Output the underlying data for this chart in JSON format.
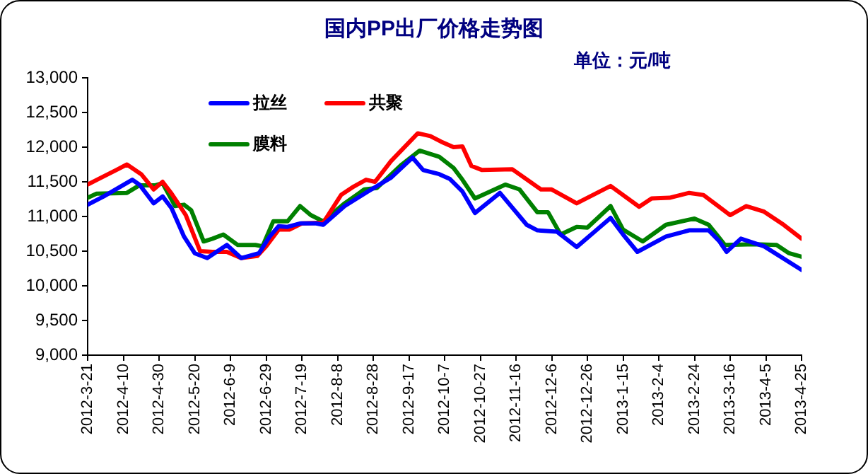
{
  "chart_data": {
    "type": "line",
    "title": "国内PP出厂价格走势图",
    "subtitle": "单位：元/吨",
    "legend": "top left",
    "marker": "none",
    "line_style": "solid",
    "grid": false,
    "ylim": [
      9000,
      13000
    ],
    "yticks": [
      {
        "value": 9000,
        "label": "9,000"
      },
      {
        "value": 9500,
        "label": "9,500"
      },
      {
        "value": 10000,
        "label": "10,000"
      },
      {
        "value": 10500,
        "label": "10,500"
      },
      {
        "value": 11000,
        "label": "11,000"
      },
      {
        "value": 11500,
        "label": "11,500"
      },
      {
        "value": 12000,
        "label": "12,000"
      },
      {
        "value": 12500,
        "label": "12,500"
      },
      {
        "value": 13000,
        "label": "13,000"
      }
    ],
    "xlim": [
      "2012-03-21",
      "2013-04-25"
    ],
    "xticks": [
      {
        "value": "2012-03-21",
        "label": "2012-3-21"
      },
      {
        "value": "2012-04-10",
        "label": "2012-4-10"
      },
      {
        "value": "2012-04-30",
        "label": "2012-4-30"
      },
      {
        "value": "2012-05-20",
        "label": "2012-5-20"
      },
      {
        "value": "2012-06-09",
        "label": "2012-6-9"
      },
      {
        "value": "2012-06-29",
        "label": "2012-6-29"
      },
      {
        "value": "2012-07-19",
        "label": "2012-7-19"
      },
      {
        "value": "2012-08-08",
        "label": "2012-8-8"
      },
      {
        "value": "2012-08-28",
        "label": "2012-8-28"
      },
      {
        "value": "2012-09-17",
        "label": "2012-9-17"
      },
      {
        "value": "2012-10-07",
        "label": "2012-10-7"
      },
      {
        "value": "2012-10-27",
        "label": "2012-10-27"
      },
      {
        "value": "2012-11-16",
        "label": "2012-11-16"
      },
      {
        "value": "2012-12-06",
        "label": "2012-12-6"
      },
      {
        "value": "2012-12-26",
        "label": "2012-12-26"
      },
      {
        "value": "2013-01-15",
        "label": "2013-1-15"
      },
      {
        "value": "2013-02-04",
        "label": "2013-2-4"
      },
      {
        "value": "2013-02-24",
        "label": "2013-2-24"
      },
      {
        "value": "2013-03-16",
        "label": "2013-3-16"
      },
      {
        "value": "2013-04-05",
        "label": "2013-4-5"
      },
      {
        "value": "2013-04-25",
        "label": "2013-4-25"
      }
    ],
    "series": [
      {
        "name": "拉丝",
        "color": "#0000ff",
        "x": [
          "2012-03-21",
          "2012-03-30",
          "2012-04-15",
          "2012-04-19",
          "2012-04-27",
          "2012-05-02",
          "2012-05-07",
          "2012-05-14",
          "2012-05-20",
          "2012-05-27",
          "2012-06-07",
          "2012-06-15",
          "2012-06-25",
          "2012-07-01",
          "2012-07-06",
          "2012-07-11",
          "2012-07-18",
          "2012-07-27",
          "2012-07-31",
          "2012-08-12",
          "2012-08-25",
          "2012-09-07",
          "2012-09-19",
          "2012-09-25",
          "2012-10-04",
          "2012-10-10",
          "2012-10-17",
          "2012-10-24",
          "2012-11-07",
          "2012-11-22",
          "2012-11-28",
          "2012-12-09",
          "2012-12-20",
          "2012-12-30",
          "2013-01-08",
          "2013-01-15",
          "2013-01-23",
          "2013-02-08",
          "2013-02-21",
          "2013-03-04",
          "2013-03-10",
          "2013-03-14",
          "2013-03-22",
          "2013-04-04",
          "2013-04-25"
        ],
        "values": [
          11170,
          11290,
          11530,
          11460,
          11190,
          11290,
          11120,
          10710,
          10470,
          10400,
          10590,
          10400,
          10470,
          10710,
          10860,
          10850,
          10900,
          10900,
          10880,
          11150,
          11360,
          11560,
          11850,
          11670,
          11610,
          11540,
          11360,
          11050,
          11340,
          10880,
          10800,
          10780,
          10560,
          10780,
          10980,
          10740,
          10490,
          10710,
          10800,
          10800,
          10640,
          10490,
          10680,
          10570,
          10230
        ]
      },
      {
        "name": "共聚",
        "color": "#ff0000",
        "x": [
          "2012-03-21",
          "2012-03-27",
          "2012-04-06",
          "2012-04-12",
          "2012-04-20",
          "2012-04-27",
          "2012-05-02",
          "2012-05-07",
          "2012-05-15",
          "2012-05-23",
          "2012-05-30",
          "2012-06-07",
          "2012-06-15",
          "2012-06-24",
          "2012-06-29",
          "2012-07-06",
          "2012-07-12",
          "2012-07-19",
          "2012-07-31",
          "2012-08-10",
          "2012-08-17",
          "2012-08-24",
          "2012-08-29",
          "2012-09-07",
          "2012-09-22",
          "2012-09-29",
          "2012-10-05",
          "2012-10-12",
          "2012-10-17",
          "2012-10-22",
          "2012-10-28",
          "2012-11-14",
          "2012-11-30",
          "2012-12-06",
          "2012-12-20",
          "2013-01-08",
          "2013-01-24",
          "2013-01-31",
          "2013-02-10",
          "2013-02-21",
          "2013-03-01",
          "2013-03-16",
          "2013-03-25",
          "2013-04-04",
          "2013-04-15",
          "2013-04-25"
        ],
        "values": [
          11460,
          11540,
          11670,
          11750,
          11610,
          11390,
          11500,
          11330,
          11020,
          10500,
          10490,
          10490,
          10400,
          10430,
          10570,
          10810,
          10810,
          10900,
          10910,
          11310,
          11430,
          11530,
          11500,
          11800,
          12200,
          12160,
          12080,
          12000,
          12010,
          11730,
          11670,
          11680,
          11390,
          11390,
          11190,
          11440,
          11140,
          11260,
          11270,
          11340,
          11310,
          11020,
          11150,
          11070,
          10880,
          10680
        ]
      },
      {
        "name": "膜料",
        "color": "#008000",
        "x": [
          "2012-03-21",
          "2012-03-26",
          "2012-04-12",
          "2012-04-19",
          "2012-04-28",
          "2012-05-02",
          "2012-05-09",
          "2012-05-14",
          "2012-05-18",
          "2012-05-25",
          "2012-05-30",
          "2012-06-05",
          "2012-06-13",
          "2012-06-23",
          "2012-06-27",
          "2012-07-03",
          "2012-07-11",
          "2012-07-18",
          "2012-07-24",
          "2012-07-31",
          "2012-08-12",
          "2012-08-23",
          "2012-08-30",
          "2012-09-13",
          "2012-09-23",
          "2012-10-04",
          "2012-10-12",
          "2012-10-17",
          "2012-10-24",
          "2012-11-10",
          "2012-11-18",
          "2012-11-28",
          "2012-12-04",
          "2012-12-11",
          "2012-12-20",
          "2012-12-26",
          "2013-01-08",
          "2013-01-15",
          "2013-01-26",
          "2013-02-08",
          "2013-02-24",
          "2013-03-04",
          "2013-03-13",
          "2013-03-30",
          "2013-04-11",
          "2013-04-18",
          "2013-04-25"
        ],
        "values": [
          11270,
          11330,
          11340,
          11450,
          11450,
          11480,
          11150,
          11170,
          11090,
          10640,
          10680,
          10740,
          10590,
          10590,
          10570,
          10930,
          10930,
          11150,
          11020,
          10930,
          11190,
          11390,
          11410,
          11750,
          11950,
          11860,
          11700,
          11530,
          11260,
          11460,
          11390,
          11060,
          11060,
          10740,
          10850,
          10840,
          11150,
          10810,
          10640,
          10880,
          10970,
          10880,
          10590,
          10600,
          10590,
          10470,
          10420
        ]
      }
    ]
  }
}
